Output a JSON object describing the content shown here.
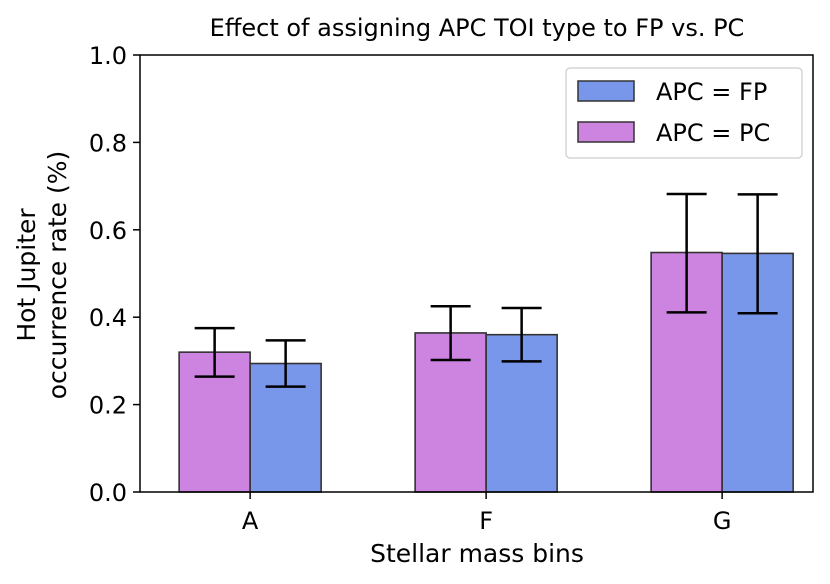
{
  "chart_data": {
    "type": "bar",
    "title": "Effect of assigning APC TOI type to FP vs. PC",
    "xlabel": "Stellar mass bins",
    "ylabel_lines": [
      "Hot Jupiter",
      "occurrence rate (%)"
    ],
    "categories": [
      "A",
      "F",
      "G"
    ],
    "ylim": [
      0,
      1.0
    ],
    "yticks": [
      "0.0",
      "0.2",
      "0.4",
      "0.6",
      "0.8",
      "1.0"
    ],
    "legend_position": "upper right",
    "series": [
      {
        "name": "APC = PC",
        "color": "#cd84e0",
        "values": [
          0.32,
          0.364,
          0.548
        ],
        "err_low": [
          0.264,
          0.302,
          0.411
        ],
        "err_high": [
          0.375,
          0.425,
          0.682
        ]
      },
      {
        "name": "APC = FP",
        "color": "#7897ea",
        "values": [
          0.294,
          0.36,
          0.546
        ],
        "err_low": [
          0.241,
          0.299,
          0.409
        ],
        "err_high": [
          0.347,
          0.421,
          0.681
        ]
      }
    ],
    "legend_order": [
      1,
      0
    ]
  }
}
